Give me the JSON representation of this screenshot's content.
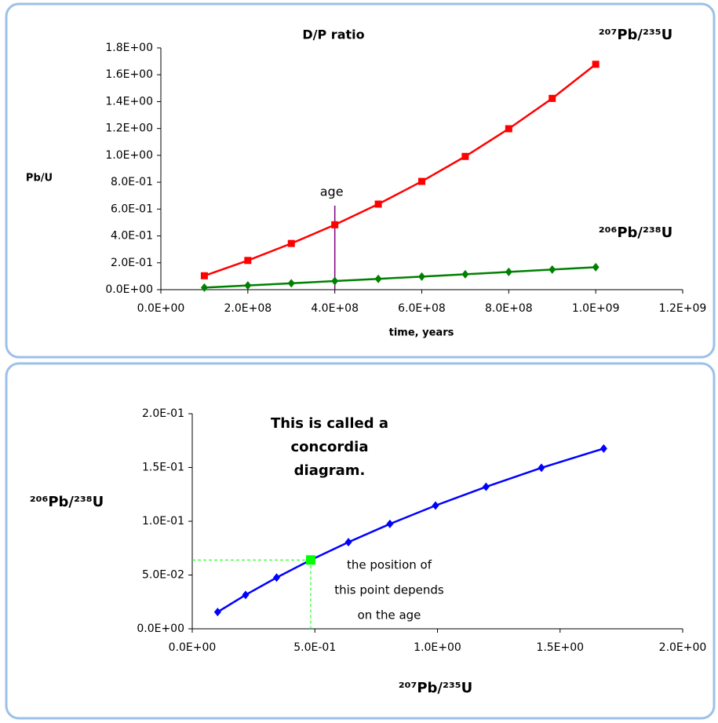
{
  "chart_data": [
    {
      "type": "line",
      "title": "D/P ratio",
      "xlabel": "time, years",
      "ylabel": "Pb/U",
      "x": [
        100000000,
        200000000,
        300000000,
        400000000,
        500000000,
        600000000,
        700000000,
        800000000,
        900000000,
        1000000000
      ],
      "series": [
        {
          "name": "²⁰⁷Pb/²³⁵U",
          "color": "#ff0000",
          "marker": "square",
          "values": [
            0.1035,
            0.2175,
            0.344,
            0.483,
            0.637,
            0.806,
            0.992,
            1.198,
            1.424,
            1.678
          ]
        },
        {
          "name": "²⁰⁶Pb/²³⁸U",
          "color": "#008000",
          "marker": "diamond",
          "values": [
            0.0156,
            0.0315,
            0.0476,
            0.064,
            0.0806,
            0.0975,
            0.1146,
            0.132,
            0.1497,
            0.1676
          ]
        }
      ],
      "xlim": [
        0,
        1200000000
      ],
      "xticks": [
        {
          "value": 0,
          "label": "0.0E+00"
        },
        {
          "value": 200000000,
          "label": "2.0E+08"
        },
        {
          "value": 400000000,
          "label": "4.0E+08"
        },
        {
          "value": 600000000,
          "label": "6.0E+08"
        },
        {
          "value": 800000000,
          "label": "8.0E+08"
        },
        {
          "value": 1000000000,
          "label": "1.0E+09"
        },
        {
          "value": 1200000000,
          "label": "1.2E+09"
        }
      ],
      "ylim": [
        0,
        1.8
      ],
      "yticks": [
        {
          "value": 0,
          "label": "0.0E+00"
        },
        {
          "value": 0.2,
          "label": "2.0E-01"
        },
        {
          "value": 0.4,
          "label": "4.0E-01"
        },
        {
          "value": 0.6,
          "label": "6.0E-01"
        },
        {
          "value": 0.8,
          "label": "8.0E-01"
        },
        {
          "value": 1.0,
          "label": "1.0E+00"
        },
        {
          "value": 1.2,
          "label": "1.2E+00"
        },
        {
          "value": 1.4,
          "label": "1.4E+00"
        },
        {
          "value": 1.6,
          "label": "1.6E+00"
        },
        {
          "value": 1.8,
          "label": "1.8E+00"
        }
      ],
      "annotations": [
        {
          "text": "age",
          "x": 400000000,
          "color": "#800080"
        }
      ]
    },
    {
      "type": "line",
      "xlabel": "²⁰⁷Pb/²³⁵U",
      "xlabel_color": "#ff0000",
      "ylabel": "²⁰⁶Pb/²³⁸U",
      "ylabel_color": "#008000",
      "x": [
        0.1035,
        0.2175,
        0.344,
        0.483,
        0.637,
        0.806,
        0.992,
        1.198,
        1.424,
        1.678
      ],
      "series": [
        {
          "color": "#0000ff",
          "marker": "diamond",
          "values": [
            0.0156,
            0.0315,
            0.0476,
            0.064,
            0.0806,
            0.0975,
            0.1146,
            0.132,
            0.1497,
            0.1676
          ]
        }
      ],
      "xlim": [
        0,
        2
      ],
      "xticks": [
        {
          "value": 0,
          "label": "0.0E+00"
        },
        {
          "value": 0.5,
          "label": "5.0E-01"
        },
        {
          "value": 1.0,
          "label": "1.0E+00"
        },
        {
          "value": 1.5,
          "label": "1.5E+00"
        },
        {
          "value": 2.0,
          "label": "2.0E+00"
        }
      ],
      "ylim": [
        0,
        0.2
      ],
      "yticks": [
        {
          "value": 0,
          "label": "0.0E+00"
        },
        {
          "value": 0.05,
          "label": "5.0E-02"
        },
        {
          "value": 0.1,
          "label": "1.0E-01"
        },
        {
          "value": 0.15,
          "label": "1.5E-01"
        },
        {
          "value": 0.2,
          "label": "2.0E-01"
        }
      ],
      "highlight_index": 3,
      "highlight_color": "#00ff00",
      "notes": [
        {
          "lines": [
            "This is called a",
            "concordia",
            "diagram."
          ],
          "color": "#000000",
          "bold": true
        },
        {
          "lines": [
            "the position of",
            "this point depends",
            "on the age"
          ],
          "color": "#008000",
          "bold": false
        }
      ]
    }
  ]
}
